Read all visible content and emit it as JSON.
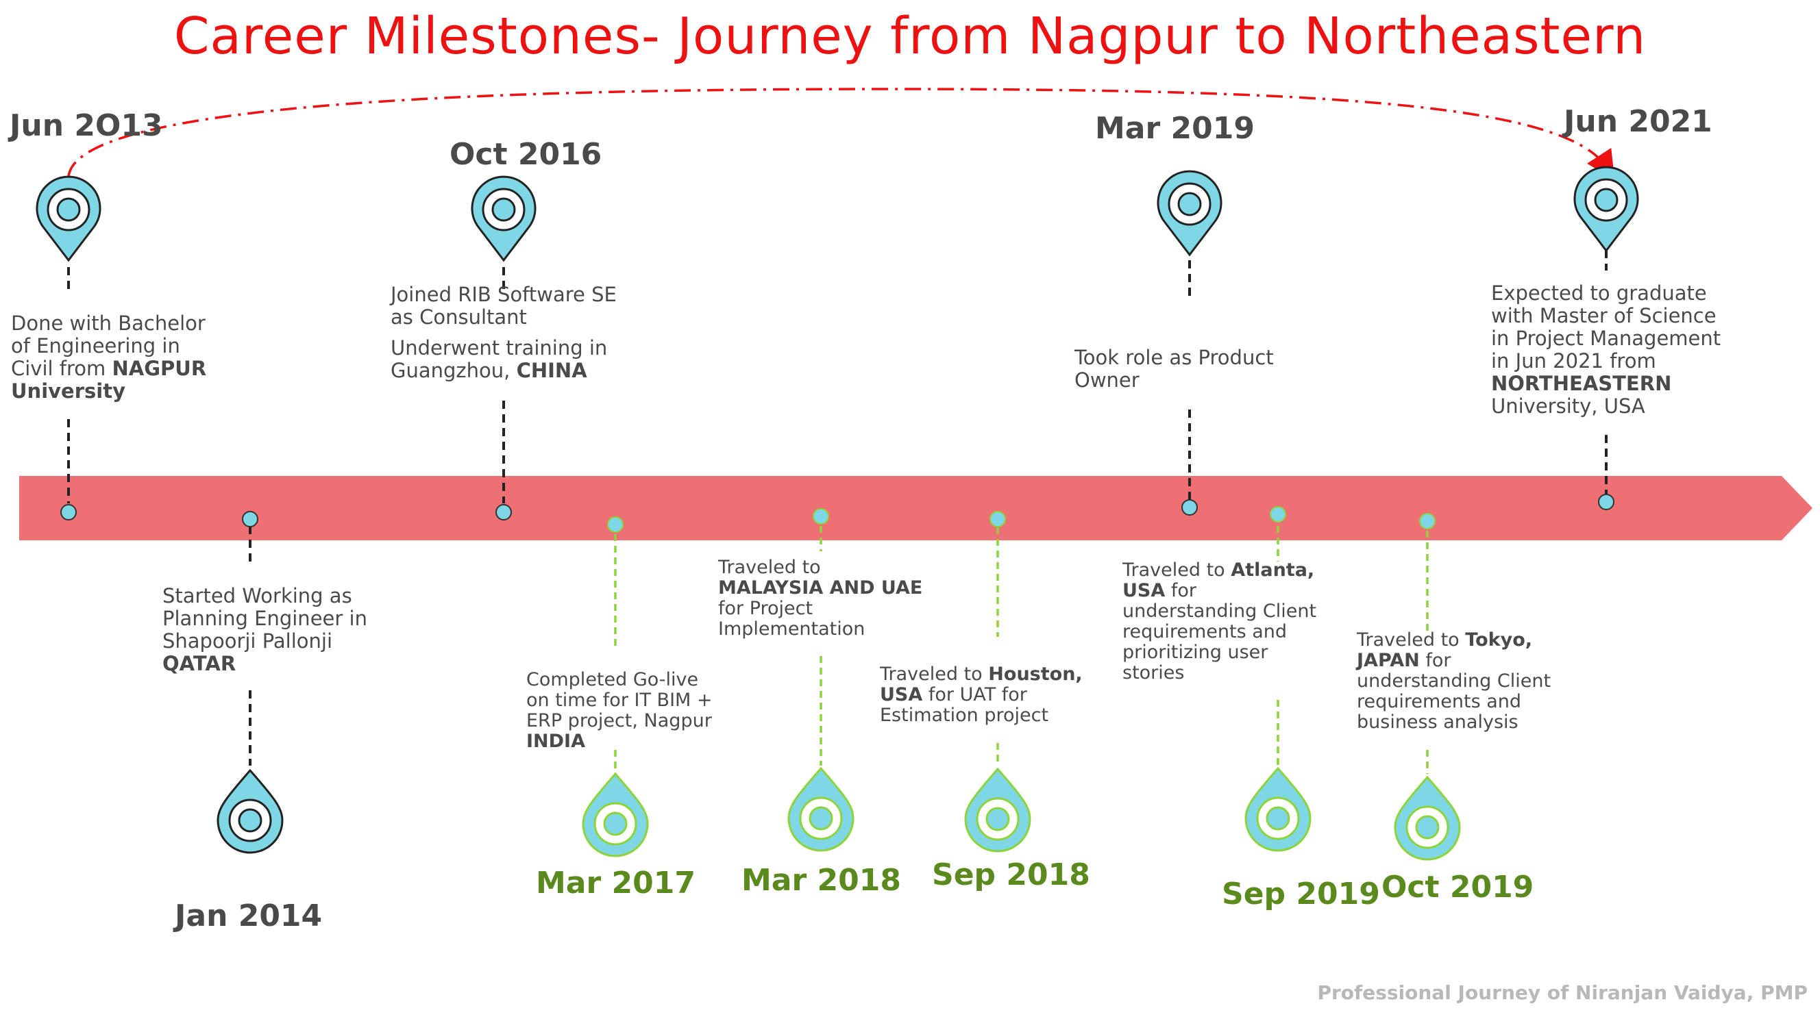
{
  "title": "Career Milestones- Journey from Nagpur to Northeastern",
  "footer": "Professional Journey of Niranjan Vaidya, PMP",
  "colors": {
    "title": "#ee1111",
    "bar": "#ee7074",
    "pin_fill": "#7fd6e4",
    "green": "#5a8a1e",
    "green_line": "#8cd43a"
  },
  "milestones_top": [
    {
      "date": "Jun 2O13",
      "lines": [
        [
          "Done with Bachelor"
        ],
        [
          "of Engineering in"
        ],
        [
          "Civil from ",
          "NAGPUR"
        ],
        [
          "University"
        ]
      ]
    },
    {
      "date": "Oct 2016",
      "para1": [
        "Joined RIB Software SE",
        "as Consultant"
      ],
      "para2": [
        [
          "Underwent training in"
        ],
        [
          "Guangzhou, ",
          "CHINA"
        ]
      ]
    },
    {
      "date": "Mar 2019",
      "lines": [
        "Took role as Product",
        "Owner"
      ]
    },
    {
      "date": "Jun 2021",
      "lines": [
        "Expected to graduate",
        "with Master of Science",
        "in Project Management",
        "in Jun 2021 from",
        "NORTHEASTERN",
        "University, USA"
      ]
    }
  ],
  "milestones_bottom": [
    {
      "date": "Jan 2014",
      "lines": [
        "Started Working as",
        "Planning Engineer in",
        "Shapoorji Pallonji",
        "QATAR"
      ]
    },
    {
      "date": "Mar 2017",
      "lines": [
        "Completed Go-live",
        "on time for IT BIM +",
        "ERP project, Nagpur",
        "INDIA"
      ]
    },
    {
      "date": "Mar 2018",
      "lines": [
        "Traveled to",
        "MALAYSIA AND UAE",
        "for Project",
        "Implementation"
      ]
    },
    {
      "date": "Sep 2018",
      "lines": [
        "Traveled to ",
        "Houston,",
        "USA",
        " for UAT for",
        "Estimation project"
      ]
    },
    {
      "date": "Sep 2019",
      "lines": [
        "Traveled to ",
        "Atlanta,",
        "USA",
        " for",
        "understanding Client",
        "requirements and",
        "prioritizing user",
        "stories"
      ]
    },
    {
      "date": "Oct 2019",
      "lines": [
        "Traveled to ",
        "Tokyo,",
        "JAPAN",
        " for",
        "understanding Client",
        "requirements and",
        "business analysis"
      ]
    }
  ]
}
